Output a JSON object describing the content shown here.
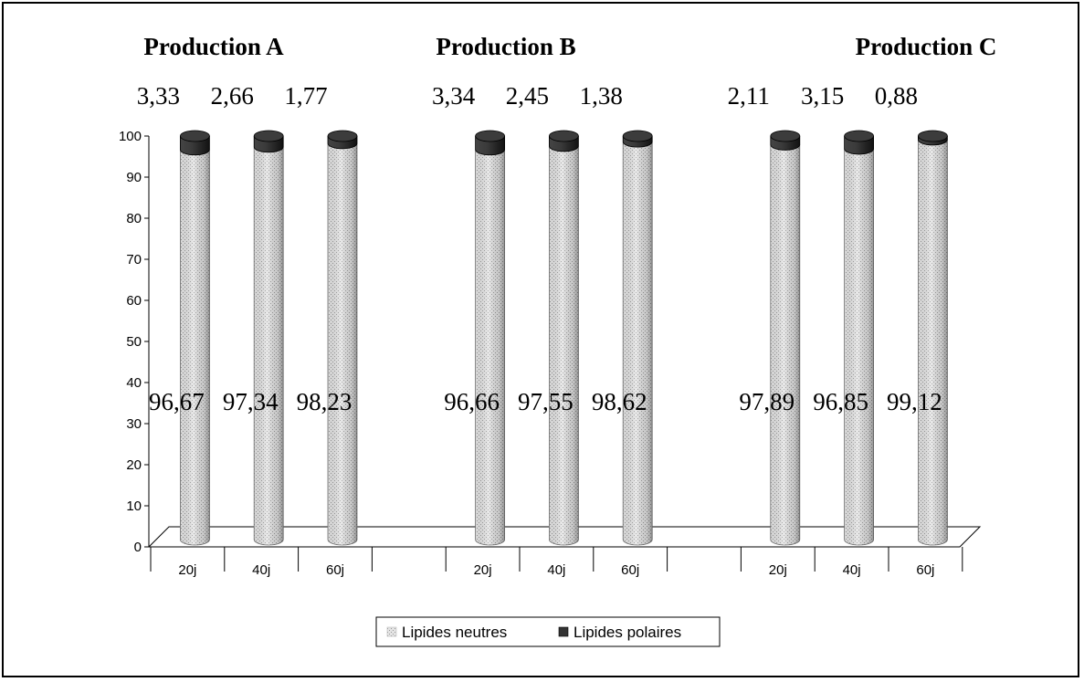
{
  "chart_data": {
    "type": "bar",
    "stacked": true,
    "groups": [
      {
        "title": "Production A",
        "categories": [
          "20j",
          "40j",
          "60j"
        ],
        "neutral_labels": [
          "96,67",
          "97,34",
          "98,23"
        ],
        "polar_labels": [
          "3,33",
          "2,66",
          "1,77"
        ],
        "neutral": [
          96.67,
          97.34,
          98.23
        ],
        "polar": [
          3.33,
          2.66,
          1.77
        ]
      },
      {
        "title": "Production B",
        "categories": [
          "20j",
          "40j",
          "60j"
        ],
        "neutral_labels": [
          "96,66",
          "97,55",
          "98,62"
        ],
        "polar_labels": [
          "3,34",
          "2,45",
          "1,38"
        ],
        "neutral": [
          96.66,
          97.55,
          98.62
        ],
        "polar": [
          3.34,
          2.45,
          1.38
        ]
      },
      {
        "title": "Production C",
        "categories": [
          "20j",
          "40j",
          "60j"
        ],
        "neutral_labels": [
          "97,89",
          "96,85",
          "99,12"
        ],
        "polar_labels": [
          "2,11",
          "3,15",
          "0,88"
        ],
        "neutral": [
          97.89,
          96.85,
          99.12
        ],
        "polar": [
          2.11,
          3.15,
          0.88
        ]
      }
    ],
    "series": [
      {
        "name": "Lipides neutres",
        "color": "#d9d9d9"
      },
      {
        "name": "Lipides polaires",
        "color": "#333333"
      }
    ],
    "yticks": [
      "0",
      "10",
      "20",
      "30",
      "40",
      "50",
      "60",
      "70",
      "80",
      "90",
      "100"
    ],
    "ylim": [
      0,
      100
    ],
    "legend_position": "bottom"
  }
}
